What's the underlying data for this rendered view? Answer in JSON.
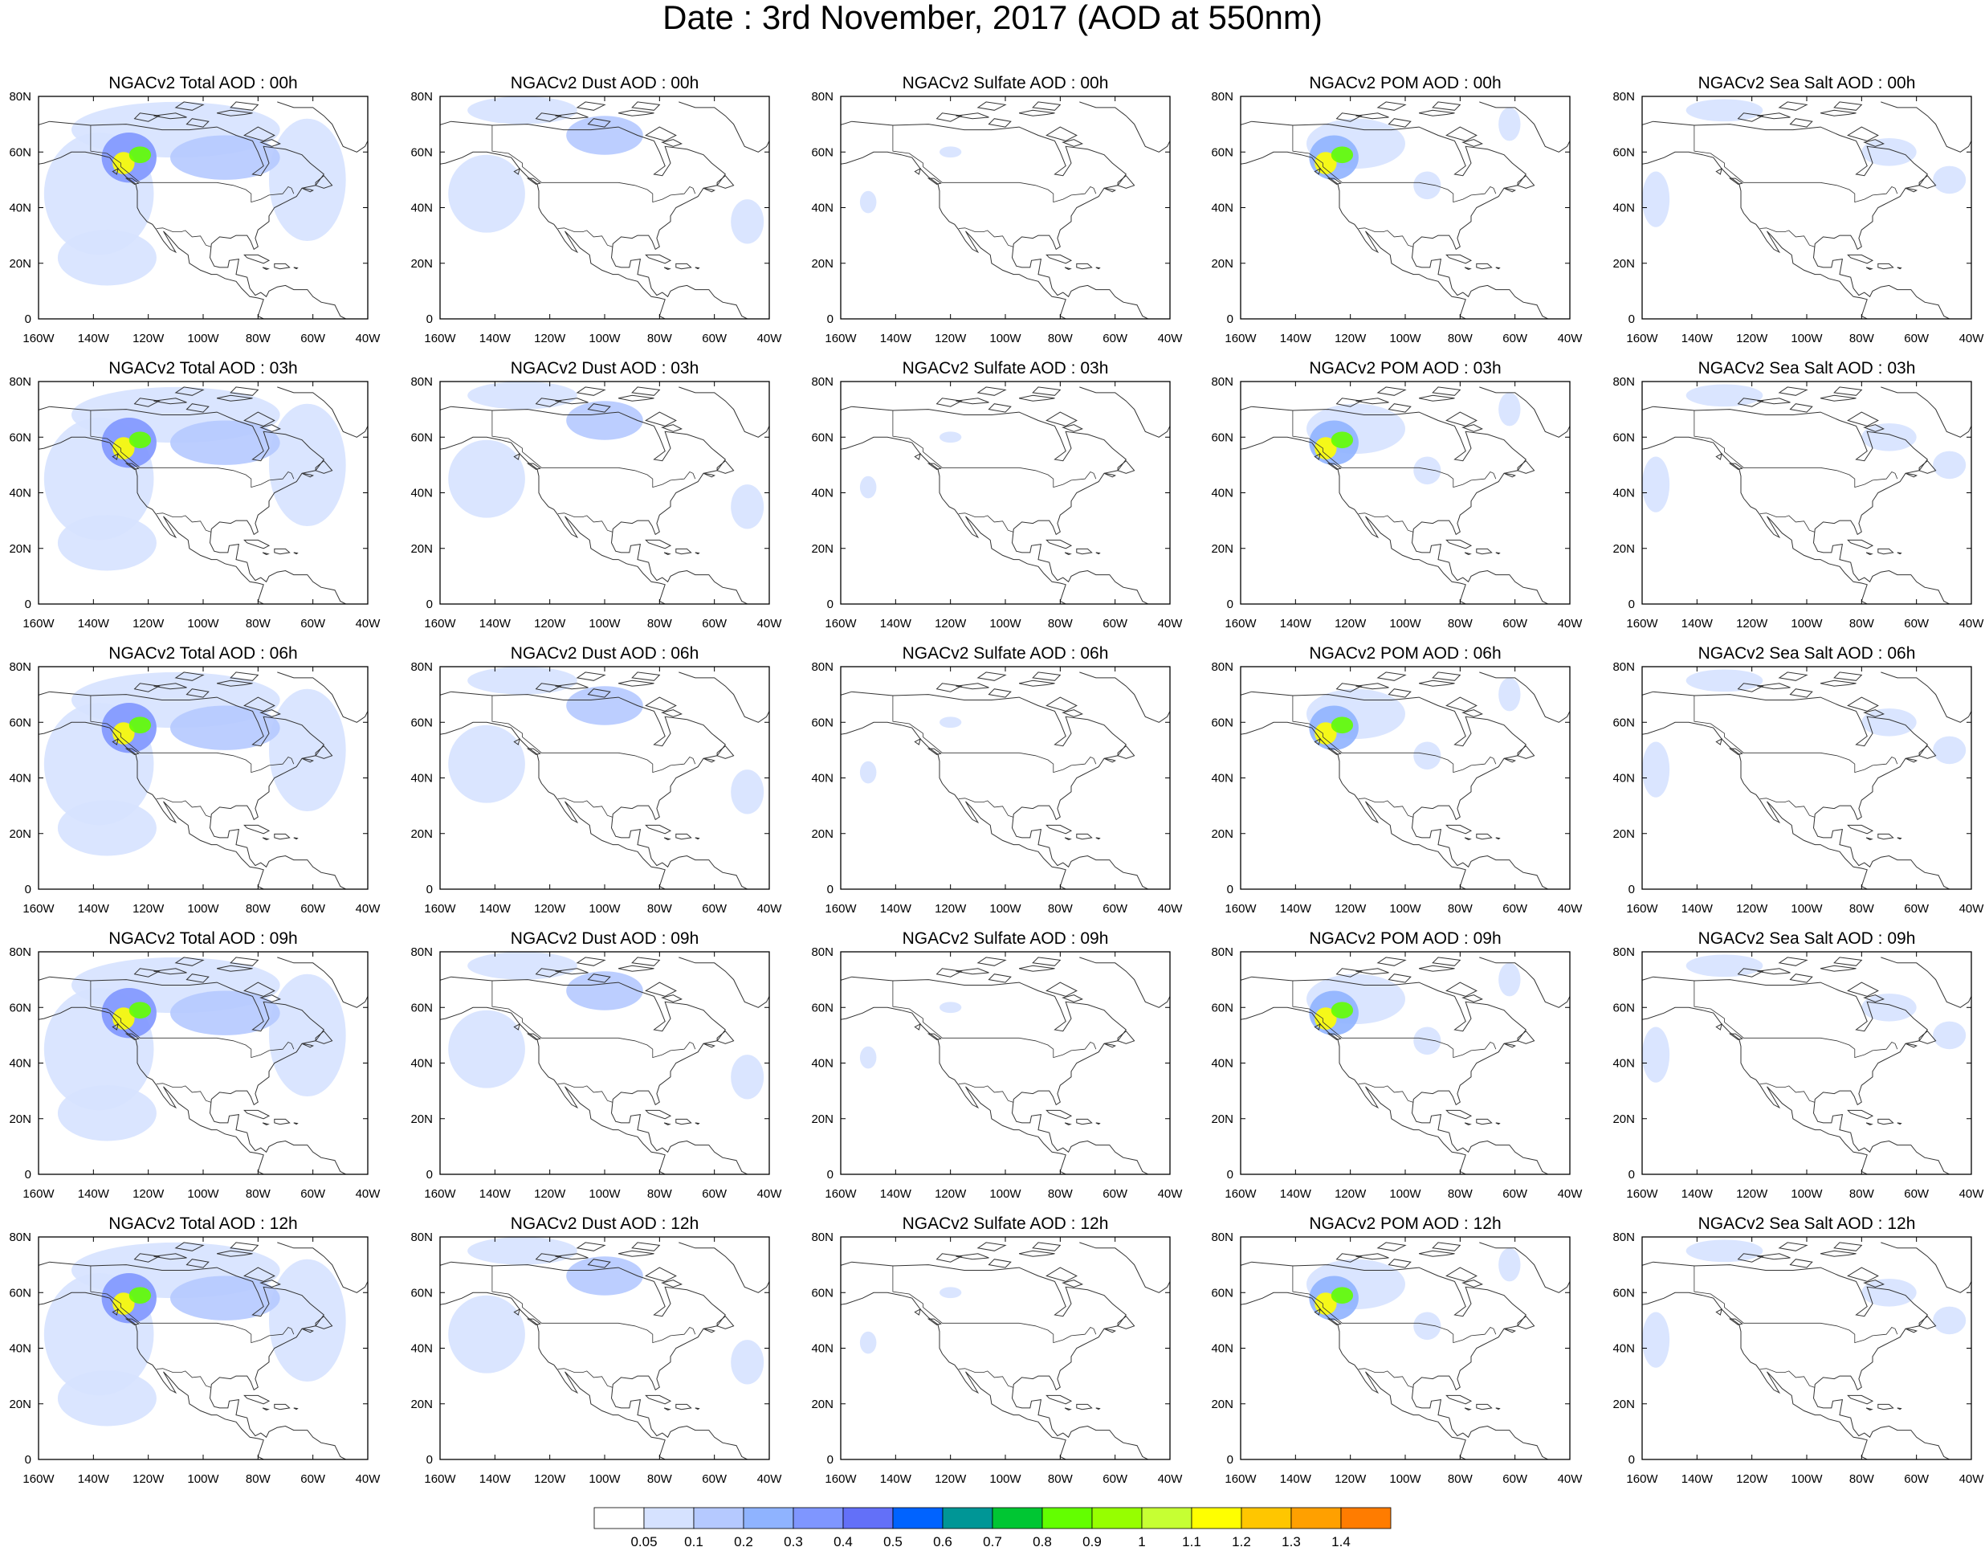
{
  "title": "Date : 3rd November, 2017 (AOD at 550nm)",
  "columns": [
    {
      "key": "total",
      "label": "Total AOD"
    },
    {
      "key": "dust",
      "label": "Dust AOD"
    },
    {
      "key": "sulfate",
      "label": "Sulfate AOD"
    },
    {
      "key": "pom",
      "label": "POM AOD"
    },
    {
      "key": "seasalt",
      "label": "Sea Salt AOD"
    }
  ],
  "rows": [
    "00h",
    "03h",
    "06h",
    "09h",
    "12h"
  ],
  "panel_titles": [
    [
      "NGACv2 Total AOD : 00h",
      "NGACv2 Dust AOD : 00h",
      "NGACv2 Sulfate AOD : 00h",
      "NGACv2 POM AOD : 00h",
      "NGACv2 Sea Salt AOD : 00h"
    ],
    [
      "NGACv2 Total AOD : 03h",
      "NGACv2 Dust AOD : 03h",
      "NGACv2 Sulfate AOD : 03h",
      "NGACv2 POM AOD : 03h",
      "NGACv2 Sea Salt AOD : 03h"
    ],
    [
      "NGACv2 Total AOD : 06h",
      "NGACv2 Dust AOD : 06h",
      "NGACv2 Sulfate AOD : 06h",
      "NGACv2 POM AOD : 06h",
      "NGACv2 Sea Salt AOD : 06h"
    ],
    [
      "NGACv2 Total AOD : 09h",
      "NGACv2 Dust AOD : 09h",
      "NGACv2 Sulfate AOD : 09h",
      "NGACv2 POM AOD : 09h",
      "NGACv2 Sea Salt  AOD : 09h"
    ],
    [
      "NGACv2 Total AOD  : 12h",
      "NGACv2 Dust AOD : 12h",
      "NGACv2 Sulfate AOD : 12h",
      "NGACv2 POM  AOD : 12h",
      "NGACv2 Sea Salt  AOD : 12h"
    ]
  ],
  "map": {
    "lon_range": [
      -160,
      -40
    ],
    "lat_range": [
      0,
      80
    ],
    "lon_ticks": [
      -160,
      -140,
      -120,
      -100,
      -80,
      -60,
      -40
    ],
    "lon_tick_labels": [
      "160W",
      "140W",
      "120W",
      "100W",
      "80W",
      "60W",
      "40W"
    ],
    "lat_ticks": [
      0,
      20,
      40,
      60,
      80
    ],
    "lat_tick_labels": [
      "0",
      "20N",
      "40N",
      "60N",
      "80N"
    ]
  },
  "colorbar": {
    "labels": [
      "0.05",
      "0.1",
      "0.2",
      "0.3",
      "0.4",
      "0.5",
      "0.6",
      "0.7",
      "0.8",
      "0.9",
      "1",
      "1.1",
      "1.2",
      "1.3",
      "1.4"
    ],
    "colors": [
      "#ffffff",
      "#d6e2ff",
      "#b5c9ff",
      "#8fb3ff",
      "#7f96ff",
      "#6370f8",
      "#0063ff",
      "#009696",
      "#00c633",
      "#63ff00",
      "#96ff00",
      "#c6ff33",
      "#ffff00",
      "#ffc600",
      "#ffa000",
      "#ff7c00",
      "#ff1900"
    ]
  },
  "plumes": {
    "total": [
      {
        "lon": -138,
        "lat": 45,
        "rx": 20,
        "ry": 22,
        "level": 1
      },
      {
        "lon": -135,
        "lat": 22,
        "rx": 18,
        "ry": 10,
        "level": 1
      },
      {
        "lon": -110,
        "lat": 68,
        "rx": 38,
        "ry": 10,
        "level": 1
      },
      {
        "lon": -62,
        "lat": 50,
        "rx": 14,
        "ry": 22,
        "level": 1
      },
      {
        "lon": -92,
        "lat": 58,
        "rx": 20,
        "ry": 8,
        "level": 2
      },
      {
        "lon": -127,
        "lat": 58,
        "rx": 10,
        "ry": 9,
        "level": 4
      },
      {
        "lon": -129,
        "lat": 56,
        "rx": 4,
        "ry": 4,
        "level": 12
      },
      {
        "lon": -123,
        "lat": 59,
        "rx": 4,
        "ry": 3,
        "level": 9
      }
    ],
    "dust": [
      {
        "lon": -143,
        "lat": 45,
        "rx": 14,
        "ry": 14,
        "level": 1
      },
      {
        "lon": -130,
        "lat": 75,
        "rx": 20,
        "ry": 5,
        "level": 1
      },
      {
        "lon": -100,
        "lat": 66,
        "rx": 14,
        "ry": 7,
        "level": 2
      },
      {
        "lon": -48,
        "lat": 35,
        "rx": 6,
        "ry": 8,
        "level": 1
      }
    ],
    "sulfate": [
      {
        "lon": -150,
        "lat": 42,
        "rx": 3,
        "ry": 4,
        "level": 1
      },
      {
        "lon": -120,
        "lat": 60,
        "rx": 4,
        "ry": 2,
        "level": 1
      }
    ],
    "pom": [
      {
        "lon": -118,
        "lat": 63,
        "rx": 18,
        "ry": 9,
        "level": 1
      },
      {
        "lon": -126,
        "lat": 58,
        "rx": 9,
        "ry": 8,
        "level": 3
      },
      {
        "lon": -129,
        "lat": 56,
        "rx": 4,
        "ry": 4,
        "level": 12
      },
      {
        "lon": -123,
        "lat": 59,
        "rx": 4,
        "ry": 3,
        "level": 9
      },
      {
        "lon": -62,
        "lat": 70,
        "rx": 4,
        "ry": 6,
        "level": 1
      },
      {
        "lon": -92,
        "lat": 48,
        "rx": 5,
        "ry": 5,
        "level": 1
      }
    ],
    "seasalt": [
      {
        "lon": -155,
        "lat": 43,
        "rx": 5,
        "ry": 10,
        "level": 1
      },
      {
        "lon": -130,
        "lat": 75,
        "rx": 14,
        "ry": 4,
        "level": 1
      },
      {
        "lon": -70,
        "lat": 60,
        "rx": 10,
        "ry": 5,
        "level": 1
      },
      {
        "lon": -48,
        "lat": 50,
        "rx": 6,
        "ry": 5,
        "level": 1
      }
    ]
  }
}
